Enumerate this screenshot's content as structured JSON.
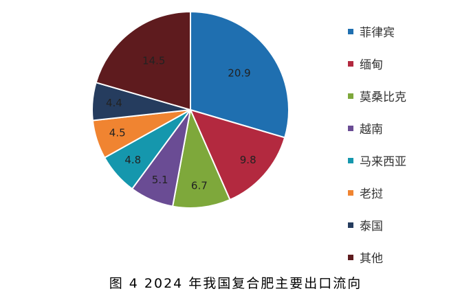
{
  "caption": "图 4 2024 年我国复合肥主要出口流向",
  "chart_data": {
    "type": "pie",
    "title": "",
    "start_angle_deg": 0,
    "direction": "clockwise",
    "slices": [
      {
        "name": "菲律宾",
        "value": 20.9,
        "label": "20.9",
        "color": "#1f6fb0"
      },
      {
        "name": "缅甸",
        "value": 9.8,
        "label": "9.8",
        "color": "#b3293f"
      },
      {
        "name": "莫桑比克",
        "value": 6.7,
        "label": "6.7",
        "color": "#7ea83b"
      },
      {
        "name": "越南",
        "value": 5.1,
        "label": "5.1",
        "color": "#6a4c94"
      },
      {
        "name": "马来西亚",
        "value": 4.8,
        "label": "4.8",
        "color": "#1597ad"
      },
      {
        "name": "老挝",
        "value": 4.5,
        "label": "4.5",
        "color": "#f08431"
      },
      {
        "name": "泰国",
        "value": 4.4,
        "label": "4.4",
        "color": "#253c5e"
      },
      {
        "name": "其他",
        "value": 14.5,
        "label": "14.5",
        "color": "#5e1b1e"
      }
    ],
    "legend_position": "right"
  }
}
